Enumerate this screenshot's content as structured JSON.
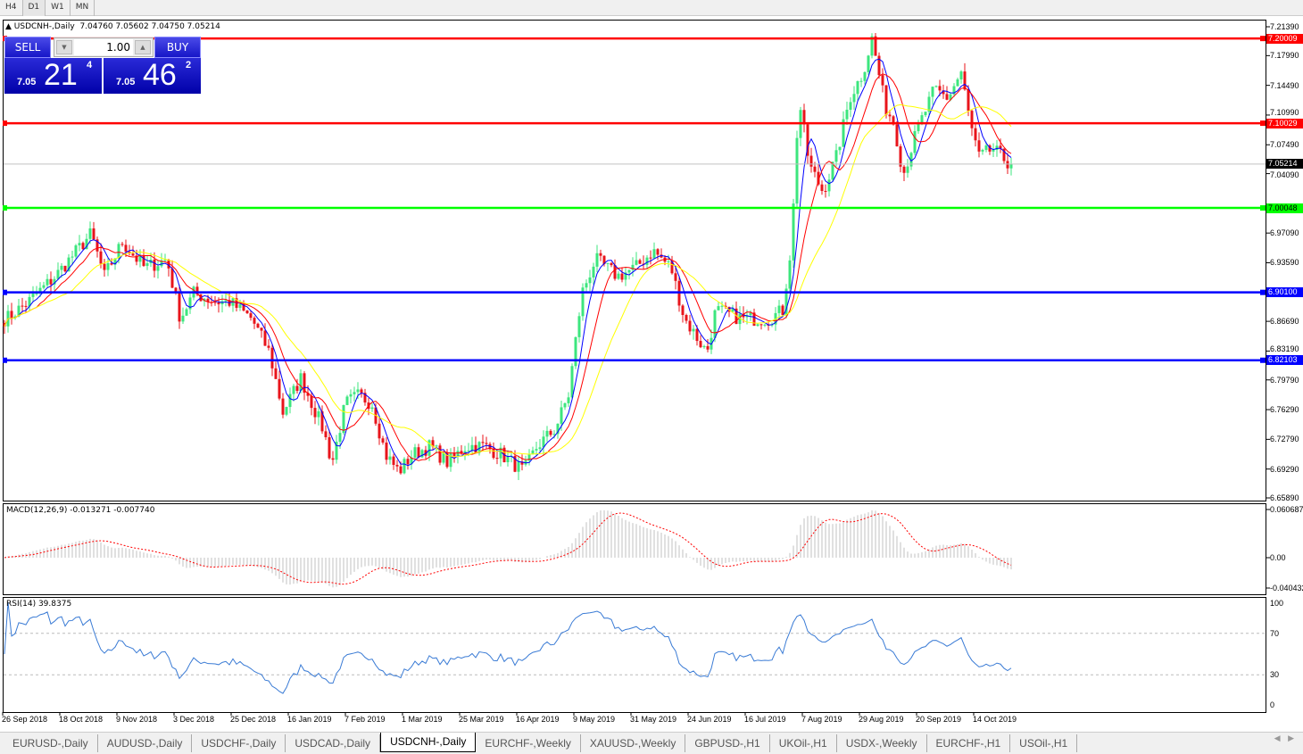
{
  "timeframes": [
    "H4",
    "D1",
    "W1",
    "MN"
  ],
  "active_timeframe": "D1",
  "chart": {
    "symbol_title": "USDCNH-,Daily",
    "ohlc": "7.04760 7.05602 7.04750 7.05214"
  },
  "trade_panel": {
    "sell_label": "SELL",
    "buy_label": "BUY",
    "lot": "1.00",
    "sell_big": "7.05",
    "sell_main": "21",
    "sell_sup": "4",
    "buy_big": "7.05",
    "buy_main": "46",
    "buy_sup": "2"
  },
  "price_axis": [
    "7.21390",
    "7.17990",
    "7.14490",
    "7.10990",
    "7.07490",
    "7.04090",
    "6.97090",
    "6.93590",
    "6.86690",
    "6.83190",
    "6.79790",
    "6.76290",
    "6.72790",
    "6.69290",
    "6.65890"
  ],
  "levels": [
    {
      "price": "7.20009",
      "color": "#ff0000"
    },
    {
      "price": "7.10029",
      "color": "#ff0000"
    },
    {
      "price": "7.00048",
      "color": "#00ff00"
    },
    {
      "price": "6.90100",
      "color": "#0000ff"
    },
    {
      "price": "6.82103",
      "color": "#0000ff"
    }
  ],
  "current_price": "7.05214",
  "macd": {
    "label": "MACD(12,26,9) -0.013271 -0.007740",
    "max": "0.060687",
    "zero": "0.00",
    "min": "-0.040432"
  },
  "rsi": {
    "label": "RSI(14) 39.8375",
    "levels": [
      "100",
      "70",
      "30",
      "0"
    ]
  },
  "dates": [
    "26 Sep 2018",
    "18 Oct 2018",
    "9 Nov 2018",
    "3 Dec 2018",
    "25 Dec 2018",
    "16 Jan 2019",
    "7 Feb 2019",
    "1 Mar 2019",
    "25 Mar 2019",
    "16 Apr 2019",
    "9 May 2019",
    "31 May 2019",
    "24 Jun 2019",
    "16 Jul 2019",
    "7 Aug 2019",
    "29 Aug 2019",
    "20 Sep 2019",
    "14 Oct 2019"
  ],
  "tabs": [
    "EURUSD-,Daily",
    "AUDUSD-,Daily",
    "USDCHF-,Daily",
    "USDCAD-,Daily",
    "USDCNH-,Daily",
    "EURCHF-,Weekly",
    "XAUUSD-,Weekly",
    "GBPUSD-,H1",
    "UKOil-,H1",
    "USDX-,Weekly",
    "EURCHF-,H1",
    "USOil-,H1"
  ],
  "active_tab": "USDCNH-,Daily",
  "colors": {
    "bull": "#3ce67e",
    "bear": "#e8141b",
    "ma_fast": "#0000ff",
    "ma_mid": "#ff0000",
    "ma_slow": "#ffff00",
    "rsi": "#3a7bd5",
    "macd_hist": "#c0c0c0",
    "macd_signal": "#ff0000"
  },
  "chart_data": {
    "type": "candlestick",
    "approx_close_path": [
      6.87,
      6.89,
      6.92,
      6.97,
      6.92,
      6.96,
      6.93,
      6.94,
      6.87,
      6.9,
      6.89,
      6.89,
      6.87,
      6.83,
      6.76,
      6.8,
      6.74,
      6.7,
      6.77,
      6.78,
      6.77,
      6.71,
      6.69,
      6.71,
      6.72,
      6.7,
      6.72,
      6.72,
      6.71,
      6.69,
      6.72,
      6.74,
      6.78,
      6.9,
      6.94,
      6.92,
      6.93,
      6.95,
      6.93,
      6.87,
      6.83,
      6.88,
      6.87,
      6.87,
      6.88,
      6.96,
      7.13,
      7.05,
      7.02,
      7.06,
      7.13,
      7.16,
      7.2,
      7.12,
      7.1,
      7.04,
      7.09,
      7.14,
      7.13,
      7.16,
      7.1,
      7.06,
      7.07,
      7.052
    ],
    "indicators": [
      "MA",
      "MACD(12,26,9)",
      "RSI(14)"
    ]
  }
}
